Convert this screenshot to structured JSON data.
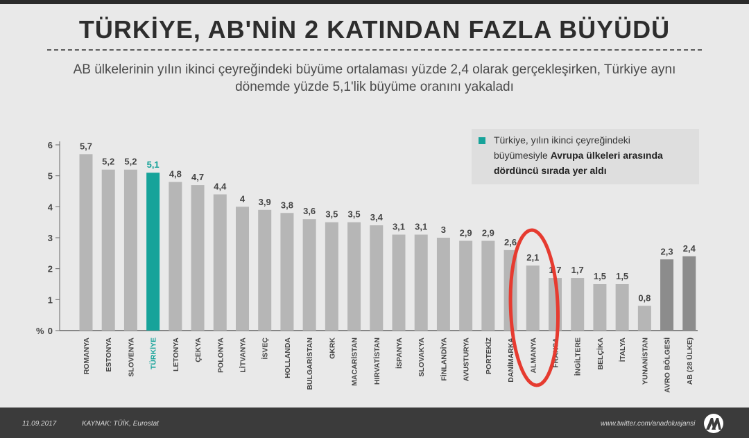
{
  "title": "TÜRKİYE, AB'NİN 2 KATINDAN FAZLA BÜYÜDÜ",
  "subtitle": "AB ülkelerinin yılın ikinci çeyreğindeki büyüme ortalaması yüzde 2,4 olarak gerçekleşirken, Türkiye aynı dönemde yüzde 5,1'lik büyüme oranını yakaladı",
  "legend": {
    "line1": "Türkiye, yılın ikinci çeyreğindeki",
    "line2_pre": "büyümesiyle ",
    "line2_bold": "Avrupa ülkeleri arasında",
    "line3_bold": "dördüncü sırada yer aldı"
  },
  "footer": {
    "date": "11.09.2017",
    "source": "KAYNAK: TÜİK, Eurostat",
    "twitter": "www.twitter.com/anadoluajansi"
  },
  "colors": {
    "bar": "#b6b6b6",
    "bar_highlight": "#17a39a",
    "bar_aggregate": "#8c8c8c",
    "annotation": "#e63b30"
  },
  "chart_data": {
    "type": "bar",
    "ylabel": "%",
    "ylim": [
      0,
      6
    ],
    "yticks": [
      "0",
      "1",
      "2",
      "3",
      "4",
      "5",
      "6"
    ],
    "categories": [
      "ROMANYA",
      "ESTONYA",
      "SLOVENYA",
      "TÜRKİYE",
      "LETONYA",
      "ÇEKYA",
      "POLONYA",
      "LİTVANYA",
      "İSVEÇ",
      "HOLLANDA",
      "BULGARİSTAN",
      "GKRK",
      "MACARİSTAN",
      "HIRVATİSTAN",
      "İSPANYA",
      "SLOVAKYA",
      "FİNLANDİYA",
      "AVUSTURYA",
      "PORTEKİZ",
      "DANİMARKA",
      "ALMANYA",
      "FRANSA",
      "İNGİLTERE",
      "BELÇİKA",
      "İTALYA",
      "YUNANİSTAN",
      "AVRO BÖLGESİ",
      "AB (28 ÜLKE)"
    ],
    "values": [
      5.7,
      5.2,
      5.2,
      5.1,
      4.8,
      4.7,
      4.4,
      4.0,
      3.9,
      3.8,
      3.6,
      3.5,
      3.5,
      3.4,
      3.1,
      3.1,
      3.0,
      2.9,
      2.9,
      2.6,
      2.1,
      1.7,
      1.7,
      1.5,
      1.5,
      0.8,
      2.3,
      2.4
    ],
    "value_labels": [
      "5,7",
      "5,2",
      "5,2",
      "5,1",
      "4,8",
      "4,7",
      "4,4",
      "4",
      "3,9",
      "3,8",
      "3,6",
      "3,5",
      "3,5",
      "3,4",
      "3,1",
      "3,1",
      "3",
      "2,9",
      "2,9",
      "2,6",
      "2,1",
      "1,7",
      "1,7",
      "1,5",
      "1,5",
      "0,8",
      "2,3",
      "2,4"
    ],
    "highlight_index": 3,
    "aggregate_indices": [
      26,
      27
    ],
    "annotated_index": 20,
    "grid": false,
    "legend_position": "top-right"
  }
}
